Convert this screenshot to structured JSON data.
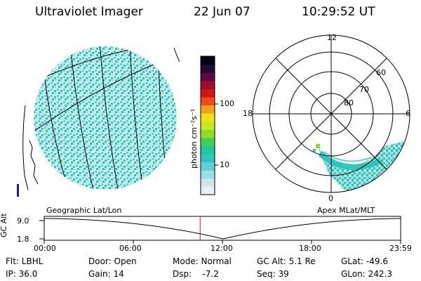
{
  "header": {
    "instrument": "Ultraviolet Imager",
    "date": "22 Jun 07",
    "time": "10:29:52 UT"
  },
  "left_panel": {
    "projection_label": "Geographic Lat/Lon"
  },
  "colorbar": {
    "unit_label": "photon cm⁻²s⁻¹",
    "ticks": [
      "100",
      "10"
    ],
    "scale": "log",
    "colors": [
      "#e9eef2",
      "#cfe6ee",
      "#9bdfe6",
      "#5fd0d6",
      "#2fc6c0",
      "#22c79c",
      "#3fd05a",
      "#8ede25",
      "#c9e81b",
      "#f0e01a",
      "#f5a21a",
      "#ee4a1a",
      "#d01515",
      "#9e0d2a",
      "#5a0a3f",
      "#1e0a33",
      "#000018"
    ]
  },
  "polar_panel": {
    "projection_label": "Apex MLat/MLT",
    "mlt_labels": [
      "12",
      "18",
      "6",
      "0"
    ],
    "lat_labels": [
      "60",
      "70",
      "80"
    ]
  },
  "altitude_plot": {
    "y_label": "GC Alt",
    "y_ticks": [
      "9.0",
      "1.8"
    ],
    "x_ticks": [
      "00:00",
      "06:00",
      "12:00",
      "18:00",
      "23:59"
    ],
    "current_time_marker_hours": 10.5,
    "marker_color": "#d01818"
  },
  "status": {
    "filter": "Flt: LBHL",
    "door": "Door: Open",
    "mode": "Mode: Normal",
    "gc_alt": "GC Alt: 5.1 Re",
    "glat": "GLat: -49.6",
    "ip": "IP: 36.0",
    "gain": "Gain: 14",
    "dsp": "Dsp:    -7.2",
    "seq": "Seq: 39",
    "glon": "GLon: 242.3"
  }
}
